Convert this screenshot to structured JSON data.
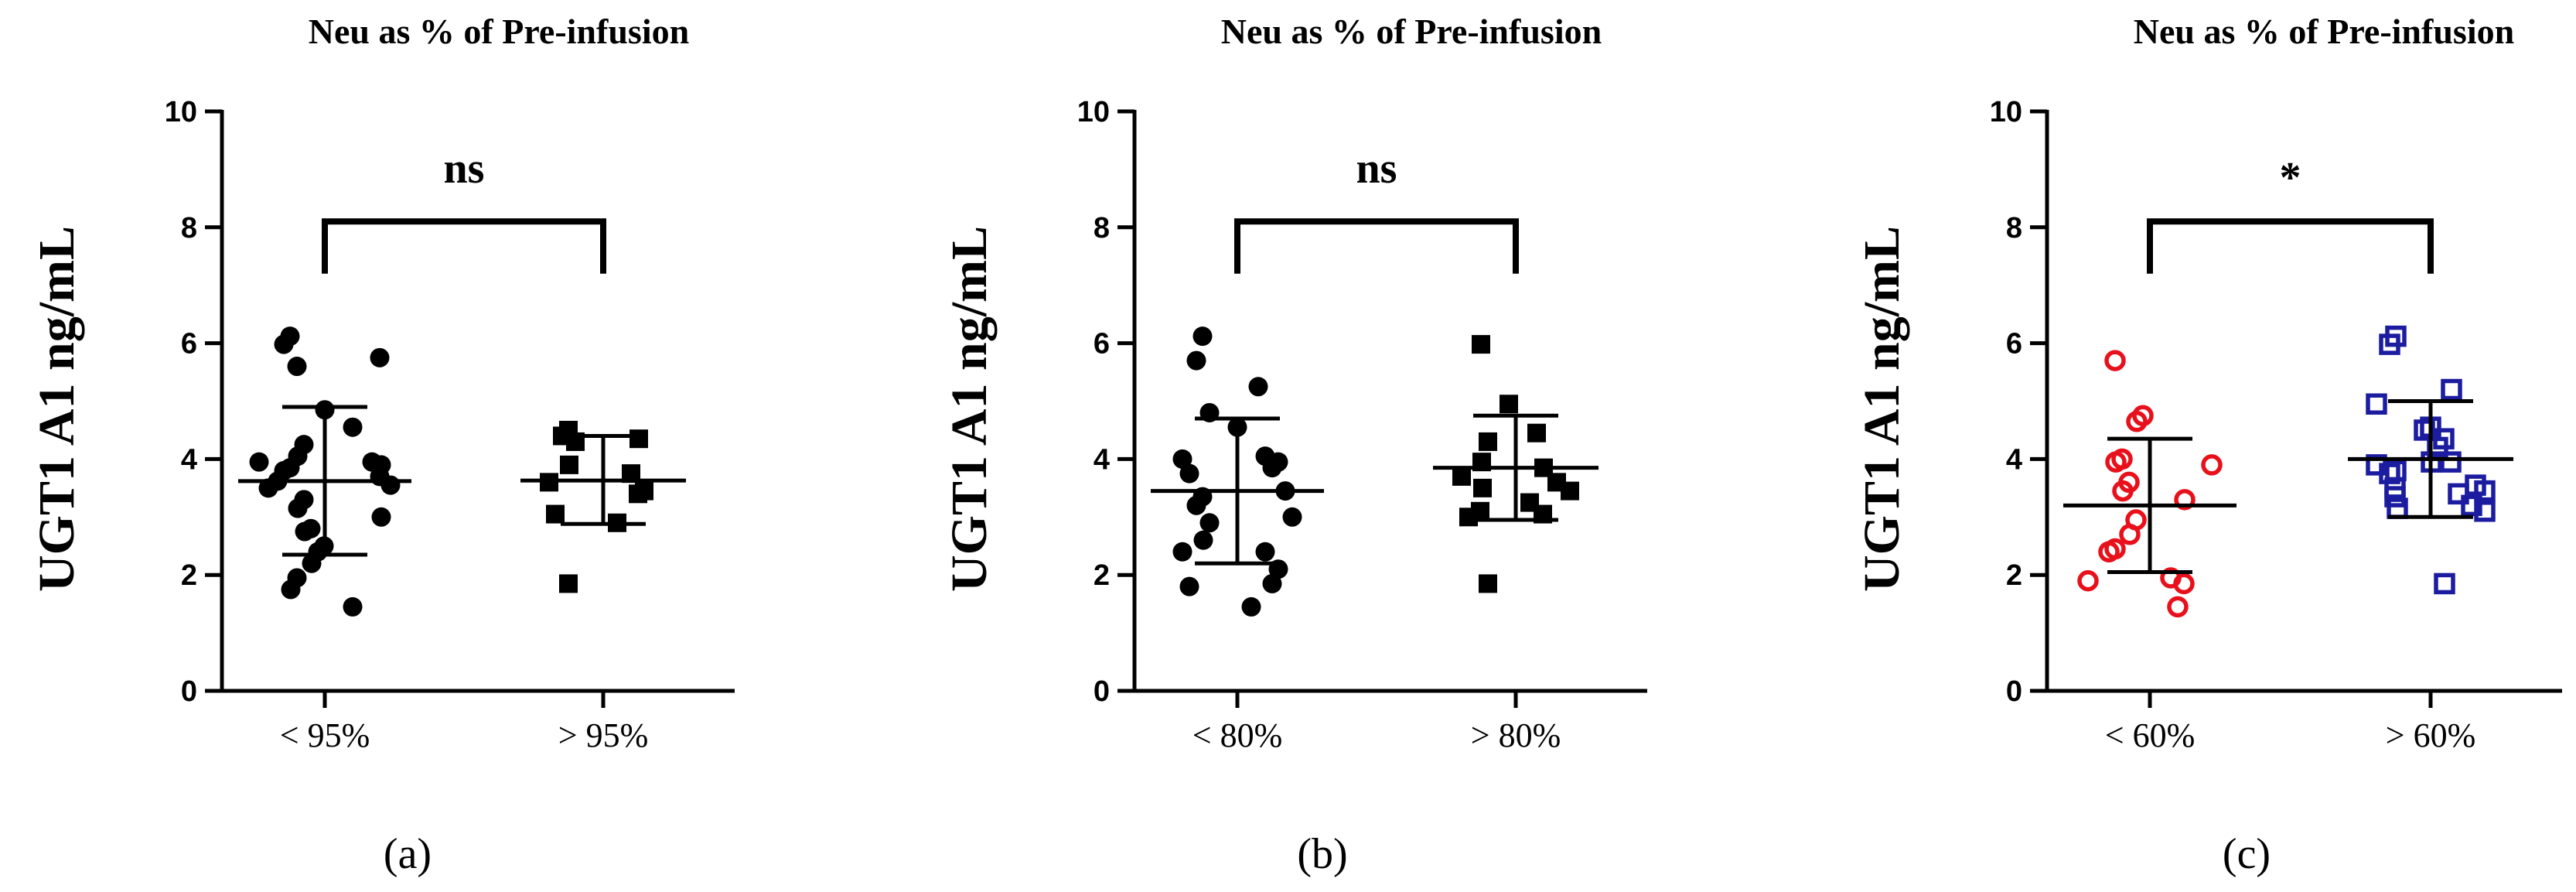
{
  "chart_data": [
    {
      "type": "scatter",
      "title": "Neu as % of Pre-infusion",
      "ylabel": "UGT1 A1 ng/mL",
      "xlabel": "",
      "ylim": [
        0,
        10
      ],
      "yticks": [
        "0",
        "2",
        "4",
        "6",
        "8",
        "10"
      ],
      "panel_label": "(a)",
      "significance": "ns",
      "groups": [
        {
          "name": "< 95%",
          "marker": "circle-filled",
          "color": "#000000",
          "mean": 3.62,
          "sd_upper": 4.9,
          "sd_lower": 2.35,
          "values": [
            6.12,
            5.98,
            5.75,
            5.6,
            4.85,
            4.55,
            4.25,
            4.05,
            3.95,
            3.95,
            3.9,
            3.85,
            3.8,
            3.7,
            3.62,
            3.55,
            3.5,
            3.3,
            3.15,
            3.0,
            2.8,
            2.75,
            2.5,
            2.4,
            2.2,
            1.95,
            1.75,
            1.45
          ]
        },
        {
          "name": "> 95%",
          "marker": "square-filled",
          "color": "#000000",
          "mean": 3.63,
          "sd_upper": 4.4,
          "sd_lower": 2.88,
          "values": [
            4.5,
            4.4,
            4.35,
            4.3,
            3.9,
            3.75,
            3.6,
            3.45,
            3.4,
            3.05,
            2.9,
            1.85
          ]
        }
      ]
    },
    {
      "type": "scatter",
      "title": "Neu as % of Pre-infusion",
      "ylabel": "UGT1 A1 ng/mL",
      "xlabel": "",
      "ylim": [
        0,
        10
      ],
      "yticks": [
        "0",
        "2",
        "4",
        "6",
        "8",
        "10"
      ],
      "panel_label": "(b)",
      "significance": "ns",
      "groups": [
        {
          "name": "< 80%",
          "marker": "circle-filled",
          "color": "#000000",
          "mean": 3.45,
          "sd_upper": 4.7,
          "sd_lower": 2.2,
          "values": [
            6.12,
            5.7,
            5.25,
            4.8,
            4.55,
            4.05,
            4.0,
            3.95,
            3.85,
            3.75,
            3.45,
            3.35,
            3.2,
            3.0,
            2.9,
            2.6,
            2.4,
            2.4,
            2.1,
            1.85,
            1.8,
            1.45
          ]
        },
        {
          "name": "> 80%",
          "marker": "square-filled",
          "color": "#000000",
          "mean": 3.85,
          "sd_upper": 4.75,
          "sd_lower": 2.95,
          "values": [
            5.98,
            4.95,
            4.45,
            4.3,
            3.95,
            3.85,
            3.7,
            3.6,
            3.5,
            3.45,
            3.25,
            3.1,
            3.05,
            3.0,
            1.85
          ]
        }
      ]
    },
    {
      "type": "scatter",
      "title": "Neu as % of Pre-infusion",
      "ylabel": "UGT1 A1 ng/mL",
      "xlabel": "",
      "ylim": [
        0,
        10
      ],
      "yticks": [
        "0",
        "2",
        "4",
        "6",
        "8",
        "10"
      ],
      "panel_label": "(c)",
      "significance": "*",
      "groups": [
        {
          "name": "< 60%",
          "marker": "circle-open",
          "color": "#e8101a",
          "mean": 3.2,
          "sd_upper": 4.35,
          "sd_lower": 2.05,
          "values": [
            5.7,
            4.75,
            4.65,
            4.0,
            3.95,
            3.9,
            3.6,
            3.45,
            3.3,
            2.95,
            2.7,
            2.45,
            2.4,
            1.95,
            1.9,
            1.85,
            1.45
          ]
        },
        {
          "name": "> 60%",
          "marker": "square-open",
          "color": "#1c1ca0",
          "mean": 4.0,
          "sd_upper": 5.0,
          "sd_lower": 3.0,
          "values": [
            6.12,
            5.98,
            5.2,
            4.95,
            4.55,
            4.5,
            4.35,
            4.2,
            3.95,
            3.95,
            3.9,
            3.8,
            3.75,
            3.55,
            3.5,
            3.45,
            3.4,
            3.35,
            3.2,
            3.15,
            3.1,
            1.85
          ]
        }
      ]
    }
  ]
}
